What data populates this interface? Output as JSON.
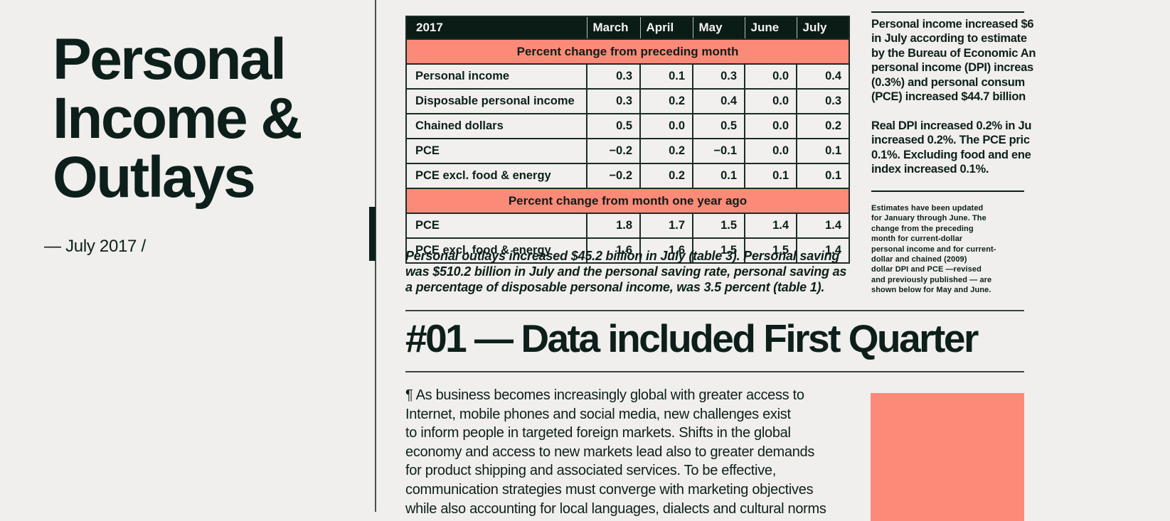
{
  "colors": {
    "background": "#F0EFED",
    "ink": "#0D1F1A",
    "salmon": "#FC8A78",
    "table_header_bg": "#0B1B16",
    "table_header_text": "#F4F3F1",
    "rule_gray": "#47524D"
  },
  "sidebar": {
    "title_lines": [
      "Personal",
      "Income &",
      "Outlays"
    ],
    "subtitle": "— July 2017 /"
  },
  "table": {
    "year": "2017",
    "months": [
      "March",
      "April",
      "May",
      "June",
      "July"
    ],
    "sections": [
      {
        "header": "Percent change from preceding month",
        "rows": [
          {
            "label": "Personal income",
            "values": [
              "0.3",
              "0.1",
              "0.3",
              "0.0",
              "0.4"
            ]
          },
          {
            "label": "Disposable personal income",
            "values": [
              "0.3",
              "0.2",
              "0.4",
              "0.0",
              "0.3"
            ]
          },
          {
            "label": "Chained dollars",
            "values": [
              "0.5",
              "0.0",
              "0.5",
              "0.0",
              "0.2"
            ]
          },
          {
            "label": "PCE",
            "values": [
              "−0.2",
              "0.2",
              "−0.1",
              "0.0",
              "0.1"
            ]
          },
          {
            "label": "PCE excl. food & energy",
            "values": [
              "−0.2",
              "0.2",
              "0.1",
              "0.1",
              "0.1"
            ]
          }
        ]
      },
      {
        "header": "Percent change from month one year ago",
        "rows": [
          {
            "label": "PCE",
            "values": [
              "1.8",
              "1.7",
              "1.5",
              "1.4",
              "1.4"
            ]
          },
          {
            "label": "PCE excl. food & energy",
            "values": [
              "1.6",
              "1.6",
              "1.5",
              "1.5",
              "1.4"
            ]
          }
        ]
      }
    ]
  },
  "table_note_lines": [
    "Personal outlays increased $45.2 billion in July (table 3). Personal saving",
    "was $510.2 billion in July and the personal saving rate, personal saving as",
    "a percentage of disposable personal income, was 3.5 percent (table 1)."
  ],
  "aside": {
    "para1_lines": [
      "Personal income increased $6",
      "in July according to estimate",
      "by the Bureau of Economic An",
      "personal income (DPI) increas",
      "(0.3%) and personal consum",
      "(PCE) increased $44.7 billion"
    ],
    "para2_lines": [
      "Real DPI increased 0.2% in Ju",
      "increased 0.2%. The PCE pric",
      "0.1%. Excluding food and ene",
      "index increased 0.1%."
    ],
    "footnote_lines": [
      "Estimates have been updated",
      "for January through June. The",
      "change from the preceding",
      "month for current-dollar",
      "personal income and for current-",
      "dollar and chained (2009)",
      "dollar DPI and PCE —revised",
      "and previously published — are",
      "shown below for May and June."
    ]
  },
  "section": {
    "heading": "#01 — Data included First Quarter",
    "body_lines": [
      "¶ As business becomes increasingly global with greater access to",
      "Internet, mobile phones and social media, new challenges exist",
      "to inform people in targeted foreign markets. Shifts in the global",
      "economy and access to new markets lead also to greater demands",
      "for product shipping and associated services. To be effective,",
      "communication strategies must converge with marketing objectives",
      "while also accounting for local languages, dialects and cultural norms"
    ]
  }
}
